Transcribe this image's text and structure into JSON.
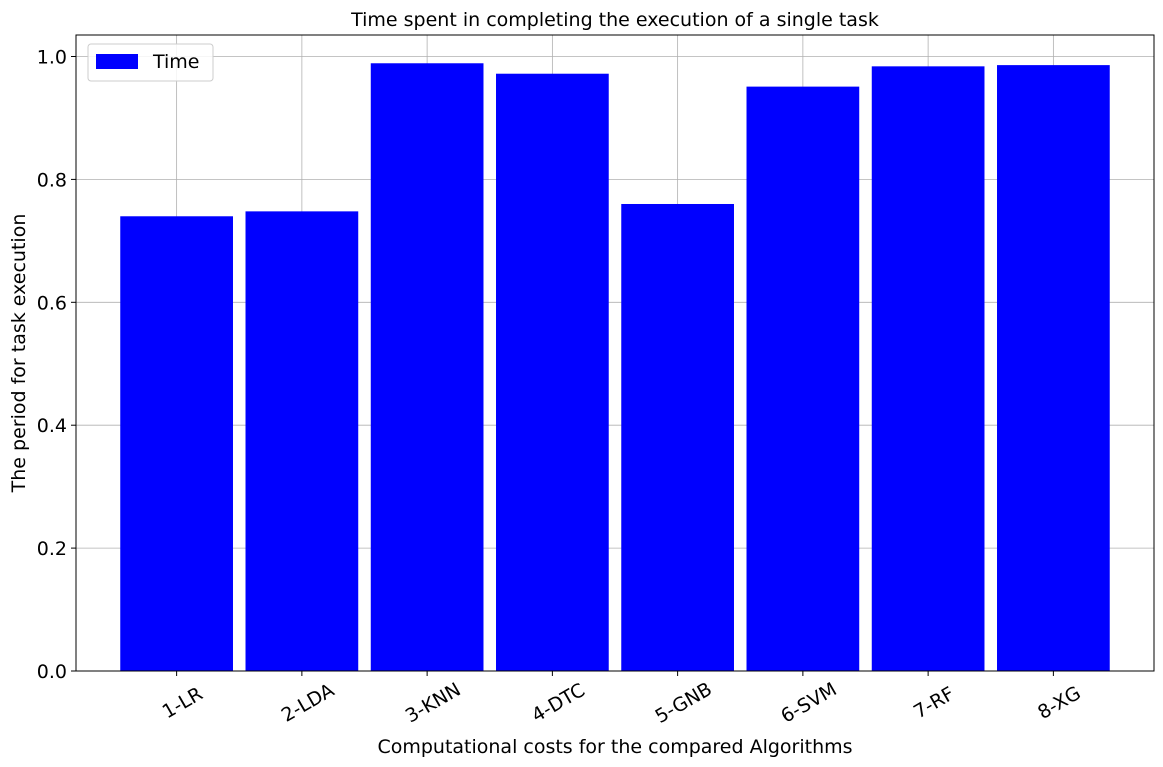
{
  "chart_data": {
    "type": "bar",
    "title": "Time spent in completing the execution of a single task",
    "xlabel": "Computational costs for the compared Algorithms",
    "ylabel": "The period for task execution",
    "categories": [
      "1-LR",
      "2-LDA",
      "3-KNN",
      "4-DTC",
      "5-GNB",
      "6-SVM",
      "7-RF",
      "8-XG"
    ],
    "series": [
      {
        "name": "Time",
        "color": "#0000ff",
        "values": [
          0.74,
          0.748,
          0.989,
          0.972,
          0.76,
          0.951,
          0.984,
          0.986
        ]
      }
    ],
    "ylim": [
      0,
      1.035
    ],
    "yticks": [
      "0.0",
      "0.2",
      "0.4",
      "0.6",
      "0.8",
      "1.0"
    ],
    "grid": true,
    "legend": "top-left"
  }
}
